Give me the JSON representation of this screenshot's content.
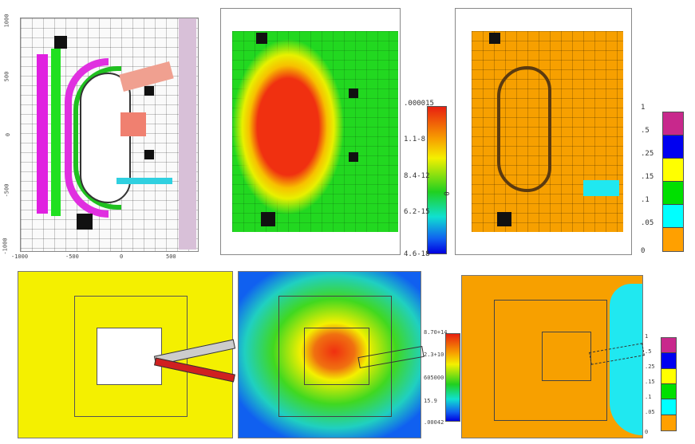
{
  "panels": {
    "geometry": {
      "x_ticks": [
        "-1000",
        "-500",
        "0",
        "500"
      ],
      "y_ticks": [
        "1000",
        "500",
        "0",
        "-500",
        "-1000"
      ]
    },
    "top_flux": {
      "legend": [
        ".000015",
        "1.1-8",
        "8.4-12",
        "6.2-15",
        "4.6-18"
      ],
      "side_label": "0",
      "colors": [
        "#e82010",
        "#f7a000",
        "#f4f000",
        "#20d020",
        "#10e0d0",
        "#1060f0"
      ]
    },
    "top_ratio": {
      "legend": [
        "1",
        ".5",
        ".25",
        ".15",
        ".1",
        ".05",
        "0"
      ],
      "colors": [
        "#c8288c",
        "#0000f0",
        "#ffff00",
        "#00e000",
        "#00ffff",
        "#ffa000"
      ]
    },
    "bottom_flux": {
      "legend": [
        "8.70+14",
        "2.3+10",
        "605000",
        "15.9",
        ".00042"
      ]
    },
    "bottom_ratio": {
      "legend": [
        "1",
        ".5",
        ".25",
        ".15",
        ".1",
        ".05",
        "0"
      ]
    }
  }
}
